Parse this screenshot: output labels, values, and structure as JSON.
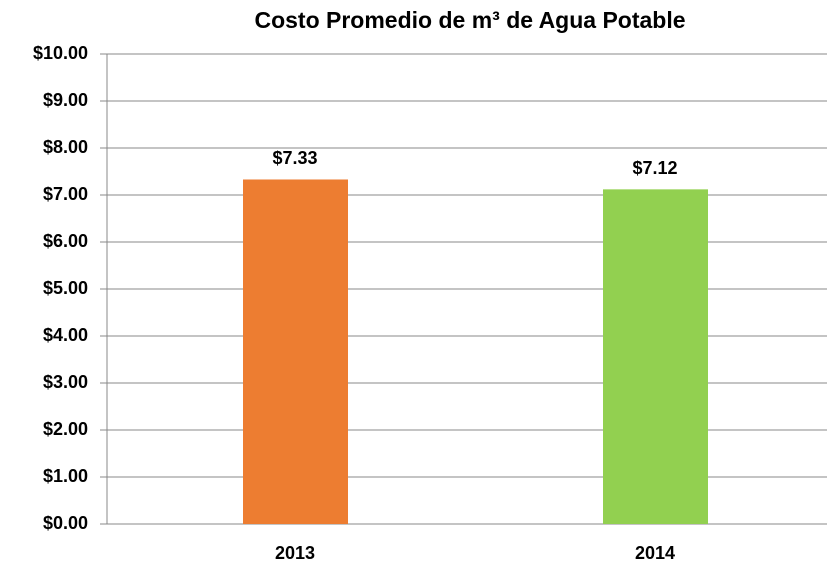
{
  "chart_data": {
    "type": "bar",
    "title": "Costo Promedio de m³ de Agua Potable",
    "categories": [
      "2013",
      "2014"
    ],
    "values": [
      7.33,
      7.12
    ],
    "value_labels": [
      "$7.33",
      "$7.12"
    ],
    "colors": [
      "#ed7d31",
      "#92d050"
    ],
    "ylim": [
      0,
      10
    ],
    "yticks": [
      {
        "value": 0,
        "label": "$0.00"
      },
      {
        "value": 1,
        "label": "$1.00"
      },
      {
        "value": 2,
        "label": "$2.00"
      },
      {
        "value": 3,
        "label": "$3.00"
      },
      {
        "value": 4,
        "label": "$4.00"
      },
      {
        "value": 5,
        "label": "$5.00"
      },
      {
        "value": 6,
        "label": "$6.00"
      },
      {
        "value": 7,
        "label": "$7.00"
      },
      {
        "value": 8,
        "label": "$8.00"
      },
      {
        "value": 9,
        "label": "$9.00"
      },
      {
        "value": 10,
        "label": "$10.00"
      }
    ],
    "grid": true
  }
}
